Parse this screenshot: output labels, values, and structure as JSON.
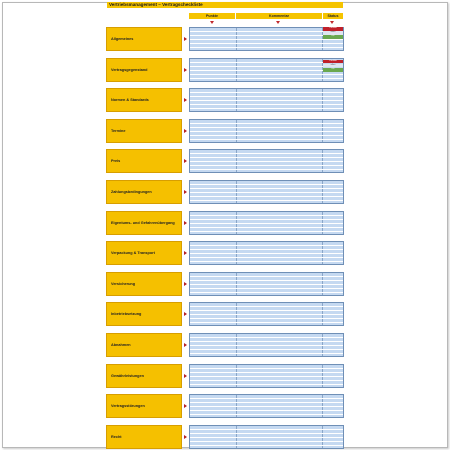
{
  "document": {
    "title": "Vertriebsmanagement – Vertragscheckliste",
    "columns": [
      "Punkte",
      "Kommentar",
      "Status"
    ],
    "status_options": [
      {
        "label": "Konflikt",
        "color": "#c0202a"
      },
      {
        "label": "offen",
        "color": "#dfe6f0"
      },
      {
        "label": "OK",
        "color": "#6aa84f"
      }
    ],
    "sections": [
      {
        "label": "Allgemeines"
      },
      {
        "label": "Vertragsgegenstand"
      },
      {
        "label": "Normen & Standards"
      },
      {
        "label": "Termine"
      },
      {
        "label": "Preis"
      },
      {
        "label": "Zahlungsbedingungen"
      },
      {
        "label": "Eigentums- und Gefahrenübergang"
      },
      {
        "label": "Verpackung & Transport"
      },
      {
        "label": "Versicherung"
      },
      {
        "label": "Inbetriebsetzung"
      },
      {
        "label": "Abnahmen"
      },
      {
        "label": "Gewährleistungen"
      },
      {
        "label": "Vertragsstörungen"
      },
      {
        "label": "Recht"
      }
    ]
  }
}
